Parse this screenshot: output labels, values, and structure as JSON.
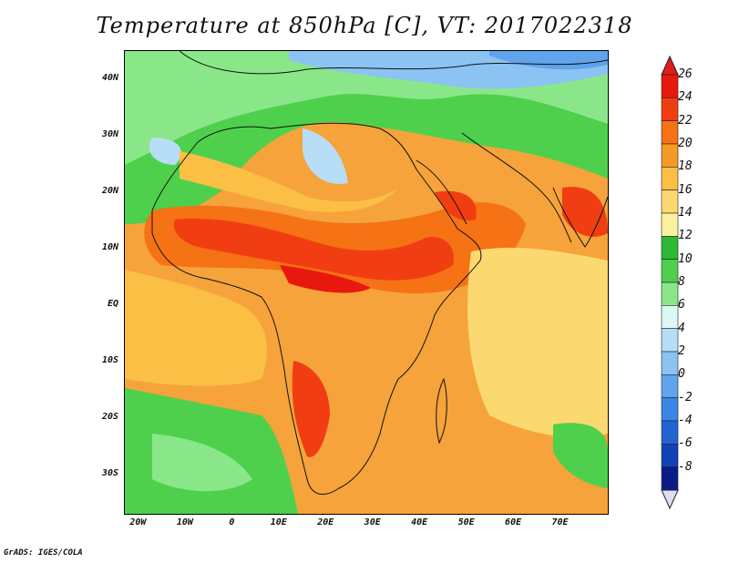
{
  "title": "Temperature at 850hPa [C], VT: 2017022318",
  "footer": "GrADS: IGES/COLA",
  "map": {
    "variable": "Temperature at 850hPa",
    "units": "C",
    "valid_time": "2017022318",
    "lon_range": [
      -23,
      80
    ],
    "lat_range": [
      -37,
      45
    ],
    "lat_ticks": [
      {
        "value": 40,
        "label": "40N"
      },
      {
        "value": 30,
        "label": "30N"
      },
      {
        "value": 20,
        "label": "20N"
      },
      {
        "value": 10,
        "label": "10N"
      },
      {
        "value": 0,
        "label": "EQ"
      },
      {
        "value": -10,
        "label": "10S"
      },
      {
        "value": -20,
        "label": "20S"
      },
      {
        "value": -30,
        "label": "30S"
      }
    ],
    "lon_ticks": [
      {
        "value": -20,
        "label": "20W"
      },
      {
        "value": -10,
        "label": "10W"
      },
      {
        "value": 0,
        "label": "0"
      },
      {
        "value": 10,
        "label": "10E"
      },
      {
        "value": 20,
        "label": "20E"
      },
      {
        "value": 30,
        "label": "30E"
      },
      {
        "value": 40,
        "label": "40E"
      },
      {
        "value": 50,
        "label": "50E"
      },
      {
        "value": 60,
        "label": "60E"
      },
      {
        "value": 70,
        "label": "70E"
      }
    ]
  },
  "colorbar": {
    "levels": [
      {
        "label": "26",
        "color": "#e8180e"
      },
      {
        "label": "24",
        "color": "#f03e12"
      },
      {
        "label": "22",
        "color": "#f57215"
      },
      {
        "label": "20",
        "color": "#f59a25"
      },
      {
        "label": "18",
        "color": "#fbbf45"
      },
      {
        "label": "16",
        "color": "#fcd870"
      },
      {
        "label": "14",
        "color": "#fcef9e"
      },
      {
        "label": "12",
        "color": "#2db836"
      },
      {
        "label": "10",
        "color": "#4ed04c"
      },
      {
        "label": "8",
        "color": "#8ae789"
      },
      {
        "label": "6",
        "color": "#dcf7f4"
      },
      {
        "label": "4",
        "color": "#b7ddf7"
      },
      {
        "label": "2",
        "color": "#8bc3f2"
      },
      {
        "label": "0",
        "color": "#5fa4ec"
      },
      {
        "label": "-2",
        "color": "#3b85e4"
      },
      {
        "label": "-4",
        "color": "#2264d3"
      },
      {
        "label": "-6",
        "color": "#1242b8"
      },
      {
        "label": "-8",
        "color": "#0a1c86"
      }
    ],
    "top_cap_color": "#e21b1b",
    "bottom_cap_color": "#e0dcf8"
  }
}
